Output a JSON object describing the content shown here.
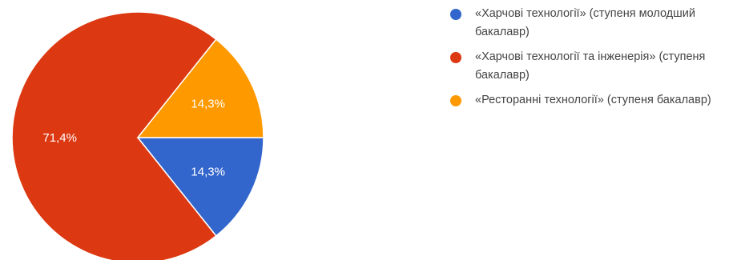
{
  "chart_data": {
    "type": "pie",
    "categories": [
      "«Харчові технології» (ступеня молодший бакалавр)",
      "«Харчові технології та інженерія» (ступеня бакалавр)",
      "«Ресторанні технології» (ступеня бакалавр)"
    ],
    "values": [
      14.3,
      71.4,
      14.3
    ],
    "data_labels": [
      "14,3%",
      "71,4%",
      "14,3%"
    ],
    "colors": [
      "#3366cc",
      "#dc3912",
      "#ff9900"
    ],
    "start": "3 o'clock",
    "direction": "clockwise",
    "legend_position": "right"
  }
}
